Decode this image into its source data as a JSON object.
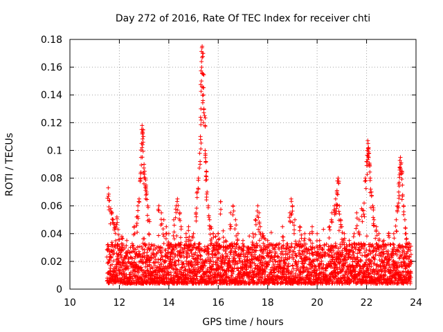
{
  "chart_data": {
    "type": "scatter",
    "title": "Day 272 of 2016, Rate Of TEC Index for receiver chti",
    "xlabel": "GPS time / hours",
    "ylabel": "ROTI / TECUs",
    "xlim": [
      10,
      24
    ],
    "ylim": [
      0,
      0.18
    ],
    "xticks": [
      10,
      12,
      14,
      16,
      18,
      20,
      22,
      24
    ],
    "xtick_labels": [
      "10",
      "12",
      "14",
      "16",
      "18",
      "20",
      "22",
      "24"
    ],
    "yticks": [
      0,
      0.02,
      0.04,
      0.06,
      0.08,
      0.1,
      0.12,
      0.14,
      0.16,
      0.18
    ],
    "ytick_labels": [
      "0",
      "0.02",
      "0.04",
      "0.06",
      "0.08",
      "0.1",
      "0.12",
      "0.14",
      "0.16",
      "0.18"
    ],
    "grid": true,
    "marker": "+",
    "color": "#ff0000",
    "series": [
      {
        "name": "ROTI",
        "points": [
          [
            11.55,
            0.073
          ],
          [
            11.6,
            0.064
          ],
          [
            11.65,
            0.058
          ],
          [
            11.7,
            0.055
          ],
          [
            11.75,
            0.05
          ],
          [
            11.8,
            0.047
          ],
          [
            11.85,
            0.045
          ],
          [
            11.9,
            0.052
          ],
          [
            11.95,
            0.043
          ],
          [
            12.1,
            0.038
          ],
          [
            12.3,
            0.035
          ],
          [
            12.6,
            0.045
          ],
          [
            12.7,
            0.052
          ],
          [
            12.75,
            0.06
          ],
          [
            12.8,
            0.065
          ],
          [
            12.85,
            0.08
          ],
          [
            12.88,
            0.095
          ],
          [
            12.9,
            0.105
          ],
          [
            12.92,
            0.118
          ],
          [
            12.95,
            0.115
          ],
          [
            12.97,
            0.11
          ],
          [
            13.0,
            0.09
          ],
          [
            13.02,
            0.085
          ],
          [
            13.05,
            0.08
          ],
          [
            13.08,
            0.075
          ],
          [
            13.1,
            0.07
          ],
          [
            13.15,
            0.06
          ],
          [
            13.2,
            0.05
          ],
          [
            13.6,
            0.06
          ],
          [
            13.7,
            0.055
          ],
          [
            13.8,
            0.05
          ],
          [
            13.9,
            0.045
          ],
          [
            14.0,
            0.04
          ],
          [
            14.1,
            0.032
          ],
          [
            14.2,
            0.05
          ],
          [
            14.3,
            0.06
          ],
          [
            14.35,
            0.065
          ],
          [
            14.45,
            0.055
          ],
          [
            14.5,
            0.045
          ],
          [
            14.7,
            0.04
          ],
          [
            14.8,
            0.045
          ],
          [
            14.9,
            0.035
          ],
          [
            15.0,
            0.04
          ],
          [
            15.1,
            0.055
          ],
          [
            15.15,
            0.07
          ],
          [
            15.2,
            0.08
          ],
          [
            15.25,
            0.098
          ],
          [
            15.28,
            0.11
          ],
          [
            15.3,
            0.13
          ],
          [
            15.32,
            0.15
          ],
          [
            15.33,
            0.16
          ],
          [
            15.35,
            0.175
          ],
          [
            15.37,
            0.17
          ],
          [
            15.39,
            0.155
          ],
          [
            15.4,
            0.14
          ],
          [
            15.42,
            0.13
          ],
          [
            15.45,
            0.125
          ],
          [
            15.47,
            0.1
          ],
          [
            15.5,
            0.092
          ],
          [
            15.52,
            0.085
          ],
          [
            15.55,
            0.07
          ],
          [
            15.6,
            0.06
          ],
          [
            15.65,
            0.05
          ],
          [
            15.7,
            0.045
          ],
          [
            15.8,
            0.04
          ],
          [
            15.9,
            0.038
          ],
          [
            16.0,
            0.04
          ],
          [
            16.1,
            0.063
          ],
          [
            16.2,
            0.042
          ],
          [
            16.3,
            0.035
          ],
          [
            16.5,
            0.055
          ],
          [
            16.6,
            0.06
          ],
          [
            16.7,
            0.05
          ],
          [
            16.8,
            0.04
          ],
          [
            17.0,
            0.035
          ],
          [
            17.2,
            0.03
          ],
          [
            17.4,
            0.04
          ],
          [
            17.5,
            0.05
          ],
          [
            17.6,
            0.06
          ],
          [
            17.65,
            0.055
          ],
          [
            17.7,
            0.045
          ],
          [
            17.8,
            0.04
          ],
          [
            18.0,
            0.035
          ],
          [
            18.3,
            0.03
          ],
          [
            18.6,
            0.045
          ],
          [
            18.9,
            0.055
          ],
          [
            18.95,
            0.065
          ],
          [
            19.0,
            0.06
          ],
          [
            19.1,
            0.05
          ],
          [
            19.3,
            0.045
          ],
          [
            19.5,
            0.04
          ],
          [
            19.7,
            0.04
          ],
          [
            19.8,
            0.045
          ],
          [
            20.0,
            0.04
          ],
          [
            20.1,
            0.035
          ],
          [
            20.5,
            0.045
          ],
          [
            20.6,
            0.055
          ],
          [
            20.7,
            0.06
          ],
          [
            20.75,
            0.065
          ],
          [
            20.8,
            0.07
          ],
          [
            20.82,
            0.078
          ],
          [
            20.85,
            0.08
          ],
          [
            20.9,
            0.06
          ],
          [
            20.95,
            0.05
          ],
          [
            21.0,
            0.045
          ],
          [
            21.1,
            0.04
          ],
          [
            21.3,
            0.035
          ],
          [
            21.5,
            0.04
          ],
          [
            21.6,
            0.055
          ],
          [
            21.7,
            0.05
          ],
          [
            21.8,
            0.058
          ],
          [
            21.9,
            0.062
          ],
          [
            21.95,
            0.08
          ],
          [
            22.0,
            0.092
          ],
          [
            22.03,
            0.1
          ],
          [
            22.05,
            0.107
          ],
          [
            22.08,
            0.102
          ],
          [
            22.1,
            0.098
          ],
          [
            22.12,
            0.09
          ],
          [
            22.15,
            0.08
          ],
          [
            22.2,
            0.07
          ],
          [
            22.25,
            0.06
          ],
          [
            22.3,
            0.05
          ],
          [
            22.4,
            0.045
          ],
          [
            22.5,
            0.04
          ],
          [
            22.7,
            0.035
          ],
          [
            22.9,
            0.04
          ],
          [
            23.1,
            0.04
          ],
          [
            23.2,
            0.05
          ],
          [
            23.25,
            0.06
          ],
          [
            23.3,
            0.07
          ],
          [
            23.32,
            0.077
          ],
          [
            23.35,
            0.088
          ],
          [
            23.37,
            0.095
          ],
          [
            23.4,
            0.091
          ],
          [
            23.42,
            0.085
          ],
          [
            23.45,
            0.075
          ],
          [
            23.5,
            0.06
          ],
          [
            23.55,
            0.05
          ],
          [
            23.6,
            0.04
          ],
          [
            23.7,
            0.033
          ],
          [
            23.8,
            0.025
          ]
        ],
        "background_band": {
          "x_range": [
            11.5,
            23.8
          ],
          "y_typical_range": [
            0.004,
            0.033
          ],
          "density": "dense, continuous"
        }
      }
    ]
  }
}
